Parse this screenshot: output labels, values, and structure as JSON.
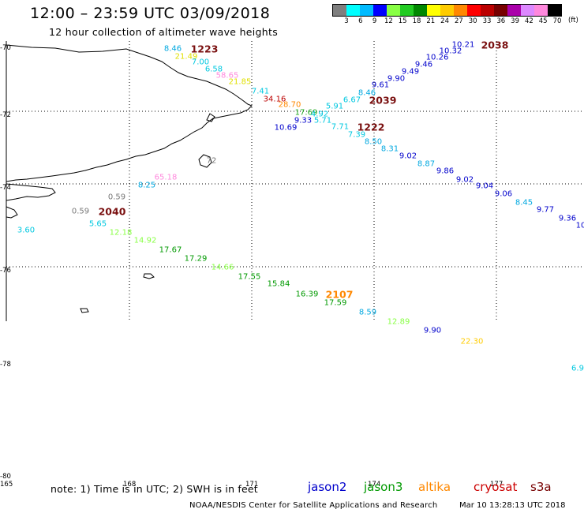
{
  "header": {
    "title": "12:00 – 23:59 UTC 03/09/2018",
    "subtitle": "12 hour collection of altimeter wave heights"
  },
  "colorbar": {
    "colors": [
      "#7f7f7f",
      "#00ffff",
      "#00bbff",
      "#0000ff",
      "#88ff44",
      "#22cc22",
      "#008800",
      "#ffff00",
      "#ffcc00",
      "#ff8800",
      "#ff0000",
      "#bb0000",
      "#770000",
      "#aa00aa",
      "#dd88ff",
      "#ff88dd",
      "#000000"
    ],
    "labels": [
      "3",
      "6",
      "9",
      "12",
      "15",
      "18",
      "21",
      "24",
      "27",
      "30",
      "33",
      "36",
      "39",
      "42",
      "45",
      "70"
    ],
    "unit": "(ft)"
  },
  "map": {
    "lat_labels": [
      "-70",
      "-72",
      "-74",
      "-76",
      "-78",
      "-80"
    ],
    "lon_labels": [
      "165",
      "168",
      "171",
      "174",
      "177"
    ],
    "grid_style": "dotted",
    "coast_color": "#000000"
  },
  "satellites": {
    "colors": {
      "jason2": "#0000cc",
      "jason3": "#009900",
      "altika": "#ff8800",
      "cryosat": "#cc0000",
      "s3a": "#770000"
    }
  },
  "observations": [
    {
      "text": "8.46",
      "color": "#00a8e0"
    },
    {
      "text": "21.49",
      "color": "#e0e000"
    },
    {
      "text": "7.00",
      "color": "#00c8e0"
    },
    {
      "text": "6.58",
      "color": "#00c8e0"
    },
    {
      "text": "58.65",
      "color": "#ff88dd"
    },
    {
      "text": "21.85",
      "color": "#e0e000"
    },
    {
      "text": "7.41",
      "color": "#00c8e0"
    },
    {
      "text": "34.16",
      "color": "#bb0000"
    },
    {
      "text": "28.70",
      "color": "#ff8800"
    },
    {
      "text": "17.69",
      "color": "#22aa22"
    },
    {
      "text": "4.92",
      "color": "#00c8e0"
    },
    {
      "text": "9.33",
      "color": "#0000cc"
    },
    {
      "text": "5.71",
      "color": "#00c8e0"
    },
    {
      "text": "10.69",
      "color": "#0000cc"
    },
    {
      "text": "5.91",
      "color": "#00c8e0"
    },
    {
      "text": "6.67",
      "color": "#00c8e0"
    },
    {
      "text": "8.46",
      "color": "#00a8e0"
    },
    {
      "text": "9.61",
      "color": "#0000cc"
    },
    {
      "text": "9.90",
      "color": "#0000cc"
    },
    {
      "text": "9.49",
      "color": "#0000cc"
    },
    {
      "text": "9.46",
      "color": "#0000cc"
    },
    {
      "text": "10.26",
      "color": "#0000cc"
    },
    {
      "text": "10.32",
      "color": "#0000cc"
    },
    {
      "text": "10.21",
      "color": "#0000cc"
    },
    {
      "text": "7.71",
      "color": "#00c8e0"
    },
    {
      "text": "7.39",
      "color": "#00c8e0"
    },
    {
      "text": "8.50",
      "color": "#00a8e0"
    },
    {
      "text": "8.31",
      "color": "#00a8e0"
    },
    {
      "text": "9.02",
      "color": "#0000cc"
    },
    {
      "text": "8.87",
      "color": "#00a8e0"
    },
    {
      "text": "9.86",
      "color": "#0000cc"
    },
    {
      "text": "9.02",
      "color": "#0000cc"
    },
    {
      "text": "9.04",
      "color": "#0000cc"
    },
    {
      "text": "9.06",
      "color": "#0000cc"
    },
    {
      "text": "8.45",
      "color": "#00a8e0"
    },
    {
      "text": "9.77",
      "color": "#0000cc"
    },
    {
      "text": "9.36",
      "color": "#0000cc"
    },
    {
      "text": "10",
      "color": "#0000cc"
    },
    {
      "text": "72",
      "color": "#777777"
    },
    {
      "text": "65.18",
      "color": "#ff88dd"
    },
    {
      "text": "8.25",
      "color": "#00a8e0"
    },
    {
      "text": "0.59",
      "color": "#777777"
    },
    {
      "text": "0.59",
      "color": "#777777"
    },
    {
      "text": "3.60",
      "color": "#00c8e0"
    },
    {
      "text": "5.65",
      "color": "#00c8e0"
    },
    {
      "text": "12.18",
      "color": "#88ff44"
    },
    {
      "text": "14.92",
      "color": "#88ff44"
    },
    {
      "text": "17.67",
      "color": "#009900"
    },
    {
      "text": "17.29",
      "color": "#009900"
    },
    {
      "text": "14.66",
      "color": "#88ff44"
    },
    {
      "text": "17.55",
      "color": "#009900"
    },
    {
      "text": "15.84",
      "color": "#009900"
    },
    {
      "text": "16.39",
      "color": "#009900"
    },
    {
      "text": "17.59",
      "color": "#009900"
    },
    {
      "text": "8.59",
      "color": "#00a8e0"
    },
    {
      "text": "12.89",
      "color": "#88ff44"
    },
    {
      "text": "9.90",
      "color": "#0000cc"
    },
    {
      "text": "22.30",
      "color": "#ffcc00"
    },
    {
      "text": "6.9",
      "color": "#00c8e0"
    }
  ],
  "pass_times": [
    {
      "text": "1223",
      "color": "#7a1010"
    },
    {
      "text": "2038",
      "color": "#7a1010"
    },
    {
      "text": "2039",
      "color": "#7a1010"
    },
    {
      "text": "1222",
      "color": "#7a1010"
    },
    {
      "text": "2040",
      "color": "#7a1010"
    },
    {
      "text": "2107",
      "color": "#ff8800"
    }
  ],
  "footer": {
    "note": "note:  1) Time is in UTC;  2) SWH is in feet",
    "legend": [
      {
        "key": "jason2",
        "label": "jason2",
        "color": "#0000cc"
      },
      {
        "key": "jason3",
        "label": "jason3",
        "color": "#009900"
      },
      {
        "key": "altika",
        "label": "altika",
        "color": "#ff8800"
      },
      {
        "key": "cryosat",
        "label": "cryosat",
        "color": "#cc0000"
      },
      {
        "key": "s3a",
        "label": "s3a",
        "color": "#770000"
      }
    ],
    "credit": "NOAA/NESDIS Center for Satellite Applications and Research",
    "timestamp": "Mar 10 13:28:13 UTC 2018"
  }
}
